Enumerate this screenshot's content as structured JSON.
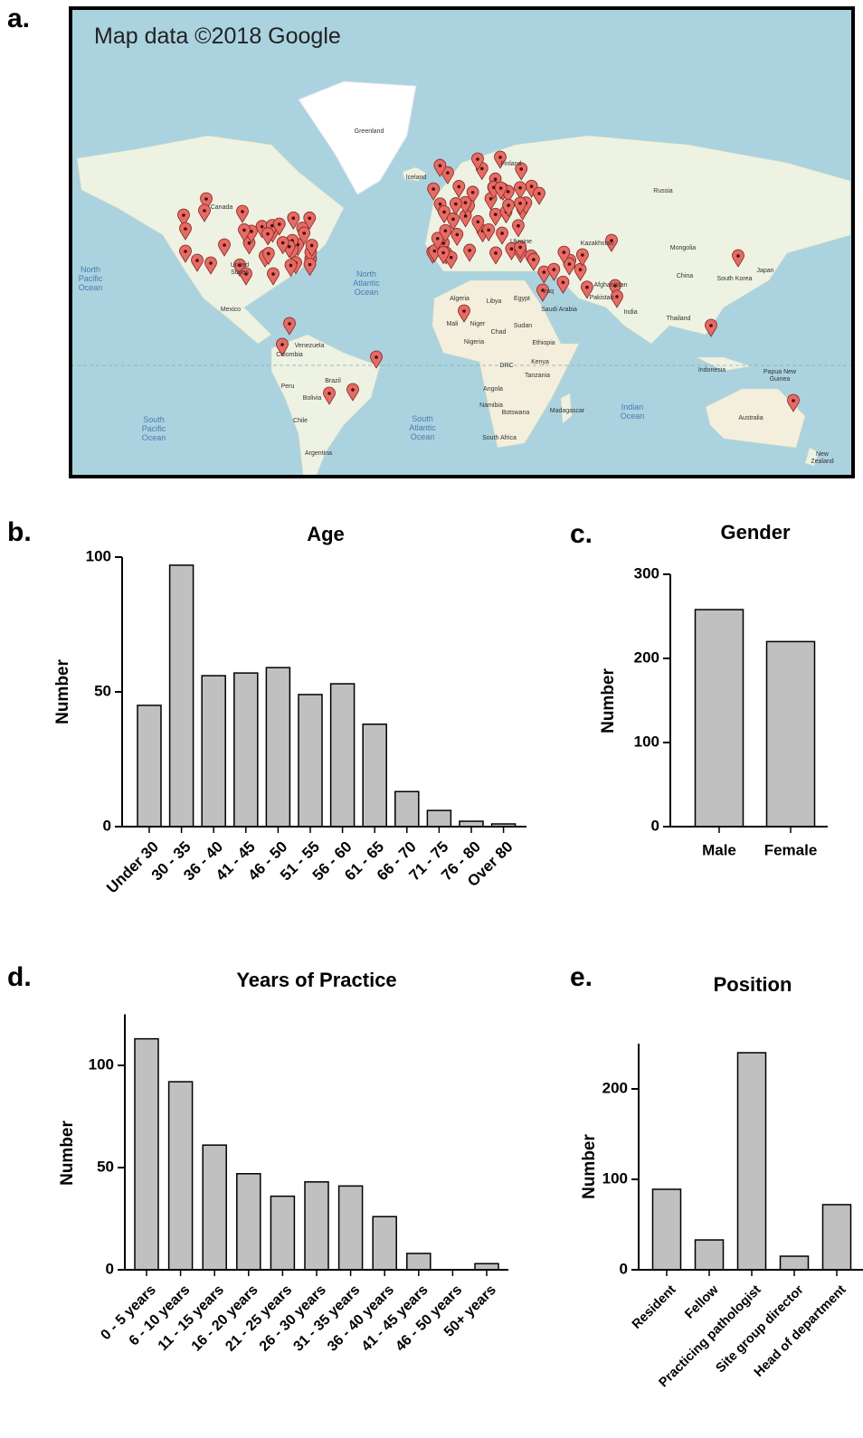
{
  "map": {
    "panel_label": "a.",
    "attribution": "Map data ©2018 Google",
    "places": [
      "Greenland",
      "Iceland",
      "Russia",
      "Canada",
      "United States",
      "Mexico",
      "North Pacific Ocean",
      "North Atlantic Ocean",
      "South Pacific Ocean",
      "South Atlantic Ocean",
      "Indian Ocean",
      "Venezuela",
      "Colombia",
      "Peru",
      "Brazil",
      "Bolivia",
      "Chile",
      "Argentina",
      "Algeria",
      "Libya",
      "Egypt",
      "Mali",
      "Niger",
      "Chad",
      "Sudan",
      "Nigeria",
      "Ethiopia",
      "DRC",
      "Kenya",
      "Tanzania",
      "Angola",
      "Namibia",
      "Botswana",
      "Madagascar",
      "South Africa",
      "Saudi Arabia",
      "Iraq",
      "Afghanistan",
      "Pakistan",
      "India",
      "Kazakhstan",
      "Mongolia",
      "China",
      "South Korea",
      "Japan",
      "Thailand",
      "Indonesia",
      "Papua New Guinea",
      "Australia",
      "New Zealand",
      "Ukraine",
      "Finland"
    ]
  },
  "chart_data": [
    {
      "type": "bar",
      "panel_label": "b.",
      "title": "Age",
      "y_label": "Number",
      "categories": [
        "Under 30",
        "30 - 35",
        "36 - 40",
        "41 - 45",
        "46 - 50",
        "51 - 55",
        "56 - 60",
        "61 - 65",
        "66 - 70",
        "71 - 75",
        "76 - 80",
        "Over 80"
      ],
      "values": [
        45,
        97,
        56,
        57,
        59,
        49,
        53,
        38,
        13,
        6,
        2,
        1
      ],
      "color": "#c0c0c0",
      "ylim": [
        0,
        100
      ],
      "yticks": [
        0,
        50,
        100
      ]
    },
    {
      "type": "bar",
      "panel_label": "c.",
      "title": "Gender",
      "y_label": "Number",
      "categories": [
        "Male",
        "Female"
      ],
      "values": [
        258,
        220
      ],
      "color": "#c0c0c0",
      "ylim": [
        0,
        300
      ],
      "yticks": [
        0,
        100,
        200,
        300
      ]
    },
    {
      "type": "bar",
      "panel_label": "d.",
      "title": "Years of Practice",
      "y_label": "Number",
      "categories": [
        "0 - 5 years",
        "6 - 10 years",
        "11 - 15 years",
        "16 - 20 years",
        "21 - 25 years",
        "26 - 30 years",
        "31 - 35 years",
        "36 - 40 years",
        "41 - 45 years",
        "46 - 50 years",
        "50+ years"
      ],
      "values": [
        113,
        92,
        61,
        47,
        36,
        43,
        41,
        26,
        8,
        0,
        3
      ],
      "color": "#c0c0c0",
      "ylim": [
        0,
        125
      ],
      "yticks": [
        0,
        50,
        100
      ]
    },
    {
      "type": "bar",
      "panel_label": "e.",
      "title": "Position",
      "y_label": "Number",
      "categories": [
        "Resident",
        "Fellow",
        "Practicing pathologist",
        "Site group director",
        "Head of department"
      ],
      "values": [
        89,
        33,
        240,
        15,
        72
      ],
      "color": "#c0c0c0",
      "ylim": [
        0,
        250
      ],
      "yticks": [
        0,
        100,
        200
      ]
    }
  ]
}
